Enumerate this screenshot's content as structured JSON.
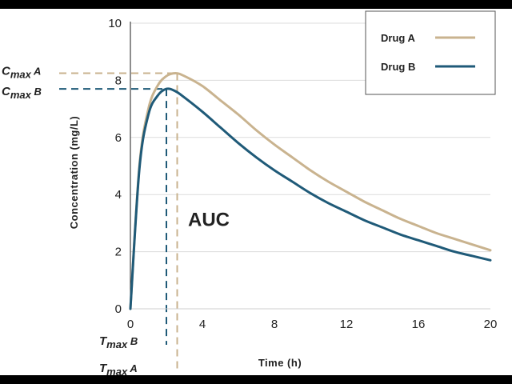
{
  "chart_data": {
    "type": "line",
    "title": "",
    "xlabel": "Time (h)",
    "ylabel": "Concentration (mg/L)",
    "xlim": [
      0,
      20
    ],
    "ylim": [
      0,
      10
    ],
    "xticks": [
      "0",
      "4",
      "8",
      "12",
      "16",
      "20"
    ],
    "yticks": [
      "0",
      "2",
      "4",
      "6",
      "8",
      "10"
    ],
    "grid": "horizontal",
    "legend_position": "top-right",
    "series": [
      {
        "name": "Drug A",
        "color": "#c9b38f",
        "x": [
          0,
          0.5,
          1,
          1.5,
          2,
          2.5,
          3,
          4,
          5,
          6,
          7,
          8,
          9,
          10,
          11,
          12,
          13,
          14,
          15,
          16,
          17,
          18,
          19,
          20
        ],
        "y": [
          0,
          5.0,
          7.0,
          7.8,
          8.15,
          8.25,
          8.15,
          7.8,
          7.3,
          6.8,
          6.25,
          5.75,
          5.3,
          4.85,
          4.45,
          4.1,
          3.75,
          3.45,
          3.15,
          2.9,
          2.65,
          2.45,
          2.25,
          2.05
        ]
      },
      {
        "name": "Drug B",
        "color": "#1f5a78",
        "x": [
          0,
          0.5,
          1,
          1.5,
          2,
          2.5,
          3,
          4,
          5,
          6,
          7,
          8,
          9,
          10,
          11,
          12,
          13,
          14,
          15,
          16,
          17,
          18,
          19,
          20
        ],
        "y": [
          0,
          4.9,
          6.8,
          7.45,
          7.7,
          7.62,
          7.4,
          6.9,
          6.35,
          5.8,
          5.3,
          4.85,
          4.45,
          4.05,
          3.7,
          3.4,
          3.1,
          2.85,
          2.6,
          2.4,
          2.2,
          2.0,
          1.85,
          1.7
        ]
      }
    ],
    "annotations": {
      "cmax_a": {
        "main": "C",
        "sub": "max",
        "suffix": "A",
        "x": 2.6,
        "y": 8.25
      },
      "cmax_b": {
        "main": "C",
        "sub": "max",
        "suffix": "B",
        "x": 2.0,
        "y": 7.7
      },
      "tmax_a": {
        "main": "T",
        "sub": "max",
        "suffix": "A",
        "x": 2.6
      },
      "tmax_b": {
        "main": "T",
        "sub": "max",
        "suffix": "B",
        "x": 2.0
      },
      "auc": {
        "text": "AUC",
        "x": 3.2,
        "y": 2.9
      }
    }
  }
}
